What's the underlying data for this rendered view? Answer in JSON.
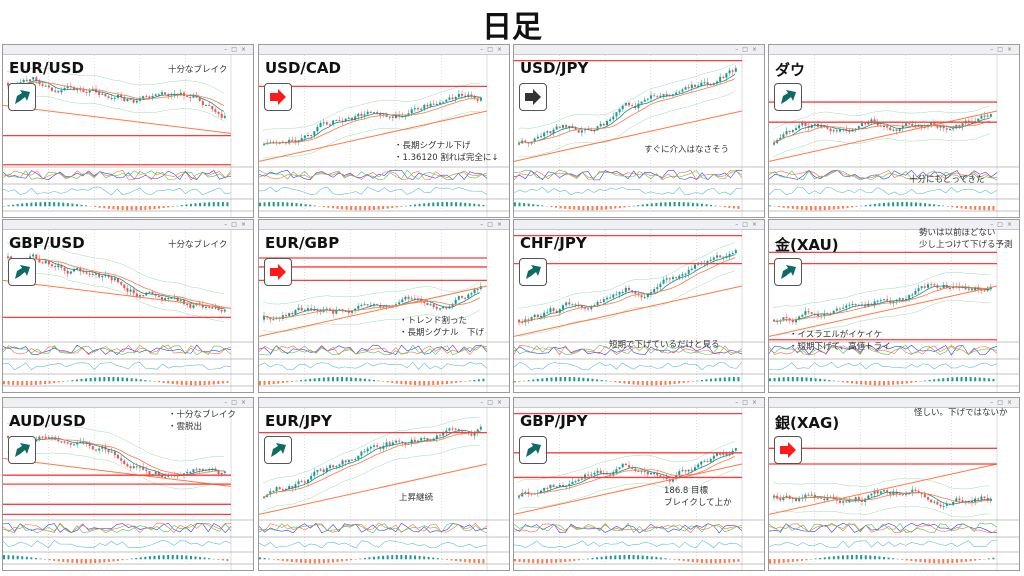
{
  "page_title": "日足",
  "colors": {
    "up_arrow": "#0d6b66",
    "right_red_arrow": "#ff1a1a",
    "right_gray_arrow": "#333333",
    "level_line": "#ff3b3b",
    "bull": "#1a9c8c",
    "bear": "#ef5350"
  },
  "panels": [
    {
      "pair": "EUR/USD",
      "arrow": "up-right",
      "arrow_color": "#0d6b66",
      "notes": [
        "十分なブレイク"
      ]
    },
    {
      "pair": "USD/CAD",
      "arrow": "right",
      "arrow_color": "#ff1a1a",
      "notes": [
        "・長期シグナル下げ",
        "・1.36120 割れば完全に↓"
      ]
    },
    {
      "pair": "USD/JPY",
      "arrow": "right",
      "arrow_color": "#333333",
      "notes": [
        "すぐに介入はなさそう"
      ]
    },
    {
      "pair": "ダウ",
      "arrow": "up-right",
      "arrow_color": "#0d6b66",
      "notes": [
        "十分にもどってきた"
      ]
    },
    {
      "pair": "GBP/USD",
      "arrow": "up-right",
      "arrow_color": "#0d6b66",
      "notes": [
        "十分なブレイク"
      ]
    },
    {
      "pair": "EUR/GBP",
      "arrow": "right",
      "arrow_color": "#ff1a1a",
      "notes": [
        "・トレンド割った",
        "・長期シグナル　下げ"
      ]
    },
    {
      "pair": "CHF/JPY",
      "arrow": "up-right",
      "arrow_color": "#0d6b66",
      "notes": [
        "短期で下げているだけと見る"
      ]
    },
    {
      "pair": "金(XAU)",
      "arrow": "up-right",
      "arrow_color": "#0d6b66",
      "notes": [
        "勢いは以前ほどない",
        "少し上つけて下げる予測",
        "・イスラエルがイケイケ",
        "・短期下げて、高値トライ"
      ]
    },
    {
      "pair": "AUD/USD",
      "arrow": "up-right",
      "arrow_color": "#0d6b66",
      "notes": [
        "・十分なブレイク",
        "・雲脱出"
      ]
    },
    {
      "pair": "EUR/JPY",
      "arrow": "up-right",
      "arrow_color": "#0d6b66",
      "notes": [
        "上昇継続"
      ]
    },
    {
      "pair": "GBP/JPY",
      "arrow": "up-right",
      "arrow_color": "#0d6b66",
      "notes": [
        "186.8 目標",
        "ブレイクして上か"
      ]
    },
    {
      "pair": "銀(XAG)",
      "arrow": "right",
      "arrow_color": "#ff1a1a",
      "notes": [
        "怪しい。下げではないか"
      ]
    }
  ]
}
